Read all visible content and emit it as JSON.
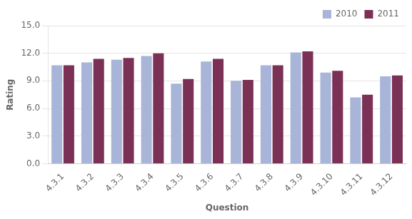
{
  "chart_data": {
    "type": "bar",
    "categories": [
      "4.3.1",
      "4.3.2",
      "4.3.3",
      "4.3.4",
      "4.3.5",
      "4.3.6",
      "4.3.7",
      "4.3.8",
      "4.3.9",
      "4.3.10",
      "4.3.11",
      "4.3.12"
    ],
    "series": [
      {
        "name": "2010",
        "color": "#a8b4d8",
        "values": [
          10.7,
          11.0,
          11.3,
          11.7,
          8.7,
          11.1,
          9.0,
          10.7,
          12.1,
          9.9,
          7.2,
          9.5
        ]
      },
      {
        "name": "2011",
        "color": "#7b3055",
        "values": [
          10.7,
          11.4,
          11.5,
          12.0,
          9.2,
          11.4,
          9.1,
          10.7,
          12.2,
          10.1,
          7.5,
          9.6
        ]
      }
    ],
    "xlabel": "Question",
    "ylabel": "Rating",
    "ylim": [
      0,
      15.0
    ],
    "yticks": [
      {
        "value": 0.0,
        "label": "0.0"
      },
      {
        "value": 3.0,
        "label": "3.0"
      },
      {
        "value": 6.0,
        "label": "6.0"
      },
      {
        "value": 9.0,
        "label": "9.0"
      },
      {
        "value": 12.0,
        "label": "12.0"
      },
      {
        "value": 15.0,
        "label": "15.0"
      }
    ],
    "grid": true,
    "legend": "upper right"
  }
}
